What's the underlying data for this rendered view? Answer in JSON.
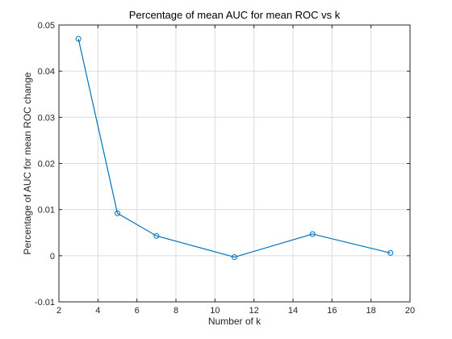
{
  "chart_data": {
    "type": "line",
    "title": "Percentage of mean AUC for mean ROC vs k",
    "xlabel": "Number of k",
    "ylabel": "Percentage of AUC for mean ROC change",
    "xlim": [
      2,
      20
    ],
    "ylim": [
      -0.01,
      0.05
    ],
    "xticks": [
      2,
      4,
      6,
      8,
      10,
      12,
      14,
      16,
      18,
      20
    ],
    "yticks": [
      -0.01,
      0,
      0.01,
      0.02,
      0.03,
      0.04,
      0.05
    ],
    "xtick_labels": [
      "2",
      "4",
      "6",
      "8",
      "10",
      "12",
      "14",
      "16",
      "18",
      "20"
    ],
    "ytick_labels": [
      "-0.01",
      "0",
      "0.01",
      "0.02",
      "0.03",
      "0.04",
      "0.05"
    ],
    "grid": true,
    "legend": "none",
    "series": [
      {
        "color": "#0072BD",
        "marker": "circle",
        "x": [
          3,
          5,
          7,
          11,
          15,
          19
        ],
        "y": [
          0.047,
          0.0092,
          0.0043,
          -0.0003,
          0.0047,
          0.0006
        ]
      }
    ]
  }
}
